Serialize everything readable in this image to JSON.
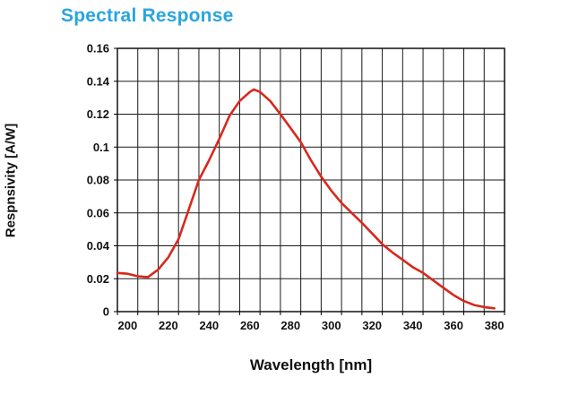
{
  "chart_data": {
    "type": "line",
    "title": "Spectral Response",
    "xlabel": "Wavelength [nm]",
    "ylabel": "Respnsivity [A/W]",
    "xlim": [
      195,
      385
    ],
    "ylim": [
      0,
      0.16
    ],
    "x_minor_step": 10,
    "grid": true,
    "legend": "none",
    "x_ticks": [
      {
        "value": 200,
        "label": "200"
      },
      {
        "value": 220,
        "label": "220"
      },
      {
        "value": 240,
        "label": "240"
      },
      {
        "value": 260,
        "label": "260"
      },
      {
        "value": 280,
        "label": "280"
      },
      {
        "value": 300,
        "label": "300"
      },
      {
        "value": 320,
        "label": "320"
      },
      {
        "value": 340,
        "label": "340"
      },
      {
        "value": 360,
        "label": "360"
      },
      {
        "value": 380,
        "label": "380"
      }
    ],
    "y_ticks": [
      {
        "value": 0.16,
        "label": "0.16"
      },
      {
        "value": 0.14,
        "label": "0.14"
      },
      {
        "value": 0.12,
        "label": "0.12"
      },
      {
        "value": 0.1,
        "label": "0.1"
      },
      {
        "value": 0.08,
        "label": "0.08"
      },
      {
        "value": 0.06,
        "label": "0.06"
      },
      {
        "value": 0.04,
        "label": "0.04"
      },
      {
        "value": 0.02,
        "label": "0.02"
      },
      {
        "value": 0,
        "label": "0"
      }
    ],
    "series": [
      {
        "name": "responsivity",
        "color": "#d8281d",
        "x": [
          195,
          200,
          205,
          210,
          215,
          220,
          225,
          230,
          235,
          240,
          245,
          250,
          255,
          260,
          262,
          265,
          270,
          275,
          280,
          285,
          290,
          295,
          300,
          305,
          310,
          315,
          320,
          325,
          330,
          335,
          340,
          345,
          350,
          355,
          360,
          365,
          370,
          375,
          380
        ],
        "y": [
          0.0235,
          0.023,
          0.0215,
          0.021,
          0.0255,
          0.033,
          0.044,
          0.062,
          0.08,
          0.092,
          0.105,
          0.119,
          0.128,
          0.1335,
          0.135,
          0.1335,
          0.128,
          0.12,
          0.1115,
          0.103,
          0.092,
          0.082,
          0.0735,
          0.066,
          0.06,
          0.054,
          0.0475,
          0.041,
          0.036,
          0.0315,
          0.027,
          0.0235,
          0.019,
          0.0145,
          0.01,
          0.0065,
          0.004,
          0.0028,
          0.002
        ]
      }
    ],
    "colors": {
      "title": "#29a5de",
      "grid": "#1a1a1a",
      "axis": "#000000",
      "tick_text": "#111111",
      "background": "#ffffff"
    }
  }
}
